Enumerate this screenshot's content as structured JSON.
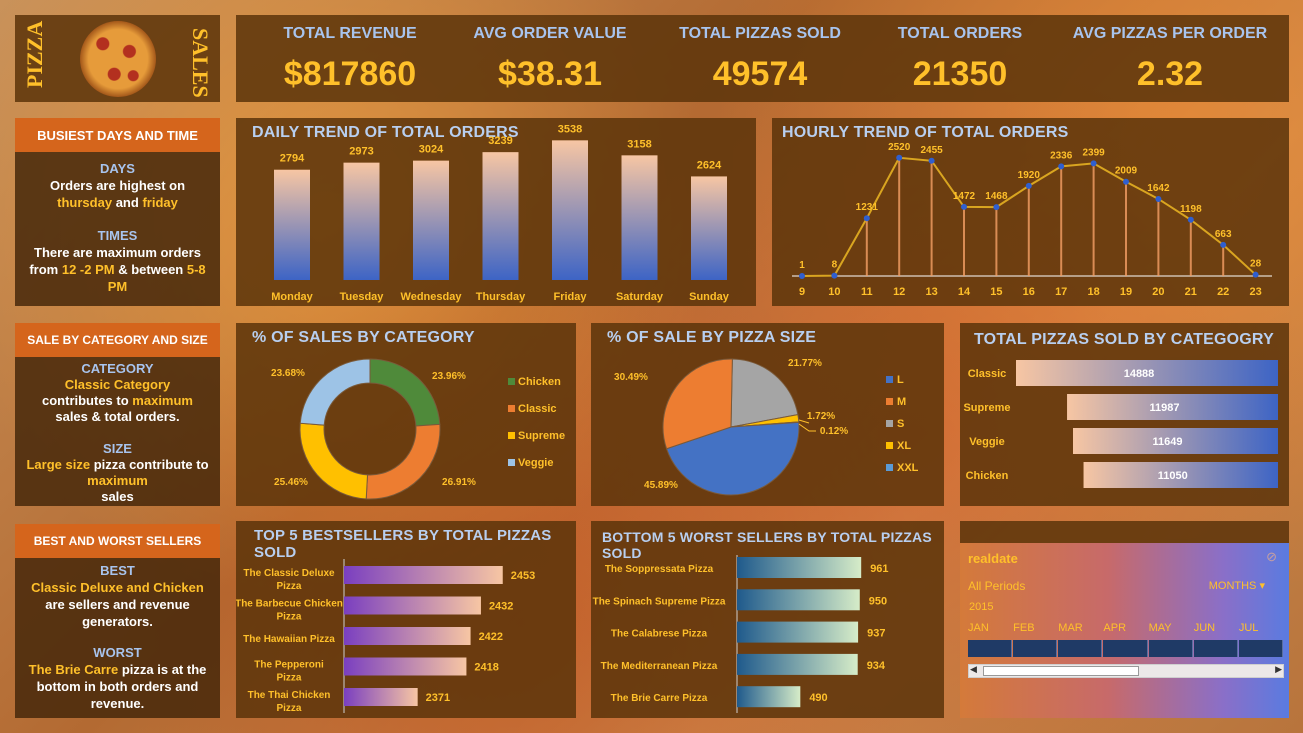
{
  "logo": {
    "left_text": "PIZZA",
    "right_text": "SALES"
  },
  "kpis": [
    {
      "label": "TOTAL REVENUE",
      "value": "$817860"
    },
    {
      "label": "AVG ORDER VALUE",
      "value": "$38.31"
    },
    {
      "label": "TOTAL PIZZAS SOLD",
      "value": "49574"
    },
    {
      "label": "TOTAL ORDERS",
      "value": "21350"
    },
    {
      "label": "AVG PIZZAS PER ORDER",
      "value": "2.32"
    }
  ],
  "busiest": {
    "heading": "BUSIEST DAYS AND TIME",
    "days_title": "DAYS",
    "days_text_1": "Orders are highest on",
    "days_hl_1": "thursday",
    "days_and": "and",
    "days_hl_2": "friday",
    "times_title": "TIMES",
    "times_text_1": "There are maximum orders from",
    "times_hl_1": "12 -2 PM",
    "times_amp": "&",
    "times_between": "between",
    "times_hl_2": "5-8 PM"
  },
  "catsize": {
    "heading": "SALE BY CATEGORY AND SIZE",
    "cat_title": "CATEGORY",
    "cat_hl": "Classic Category",
    "cat_text_1": "contributes to",
    "cat_hl_2": "maximum",
    "cat_text_2": "sales & total orders.",
    "size_title": "SIZE",
    "size_hl": "Large size",
    "size_text_1": "pizza contribute to",
    "size_hl_2": "maximum",
    "size_text_2": "sales"
  },
  "bestworst": {
    "heading": "BEST AND WORST SELLERS",
    "best_title": "BEST",
    "best_hl": "Classic Deluxe and Chicken",
    "best_text": "are sellers and revenue generators.",
    "worst_title": "WORST",
    "worst_hl": "The Brie Carre",
    "worst_text": "pizza is at the bottom in both orders and revenue."
  },
  "chart_data": [
    {
      "type": "bar",
      "title": "DAILY TREND OF TOTAL ORDERS",
      "categories": [
        "Monday",
        "Tuesday",
        "Wednesday",
        "Thursday",
        "Friday",
        "Saturday",
        "Sunday"
      ],
      "values": [
        2794,
        2973,
        3024,
        3239,
        3538,
        3158,
        2624
      ]
    },
    {
      "type": "line",
      "title": "HOURLY TREND OF TOTAL ORDERS",
      "x": [
        "9",
        "10",
        "11",
        "12",
        "13",
        "14",
        "15",
        "16",
        "17",
        "18",
        "19",
        "20",
        "21",
        "22",
        "23"
      ],
      "values": [
        1,
        8,
        1231,
        2520,
        2455,
        1472,
        1468,
        1920,
        2336,
        2399,
        2009,
        1642,
        1198,
        663,
        28
      ]
    },
    {
      "type": "pie",
      "title": "% OF SALES BY CATEGORY",
      "labels": [
        "Chicken",
        "Classic",
        "Supreme",
        "Veggie"
      ],
      "values": [
        23.96,
        26.91,
        25.46,
        23.68
      ],
      "value_labels": [
        "23.96%",
        "26.91%",
        "25.46%",
        "23.68%"
      ],
      "colors": [
        "#4f8a3a",
        "#ed7d31",
        "#ffc000",
        "#9dc3e6"
      ]
    },
    {
      "type": "pie",
      "title": "% OF SALE BY PIZZA SIZE",
      "labels": [
        "L",
        "M",
        "S",
        "XL",
        "XXL"
      ],
      "values": [
        45.89,
        30.49,
        21.77,
        1.72,
        0.12
      ],
      "value_labels": [
        "45.89%",
        "30.49%",
        "21.77%",
        "1.72%",
        "0.12%"
      ],
      "colors": [
        "#4472c4",
        "#ed7d31",
        "#a5a5a5",
        "#ffc000",
        "#5b9bd5"
      ]
    },
    {
      "type": "bar",
      "title": "TOTAL PIZZAS SOLD BY CATEGOGRY",
      "categories": [
        "Classic",
        "Supreme",
        "Veggie",
        "Chicken"
      ],
      "values": [
        14888,
        11987,
        11649,
        11050
      ]
    },
    {
      "type": "bar",
      "title": "TOP 5 BESTSELLERS BY TOTAL PIZZAS SOLD",
      "categories": [
        "The Classic Deluxe Pizza",
        "The Barbecue Chicken Pizza",
        "The Hawaiian Pizza",
        "The Pepperoni Pizza",
        "The Thai Chicken Pizza"
      ],
      "values": [
        2453,
        2432,
        2422,
        2418,
        2371
      ]
    },
    {
      "type": "bar",
      "title": "BOTTOM 5 WORST SELLERS BY TOTAL PIZZAS SOLD",
      "categories": [
        "The Soppressata Pizza",
        "The Spinach Supreme Pizza",
        "The Calabrese Pizza",
        "The Mediterranean Pizza",
        "The Brie Carre Pizza"
      ],
      "values": [
        961,
        950,
        937,
        934,
        490
      ]
    }
  ],
  "timeline": {
    "field": "realdate",
    "periods": "All Periods",
    "unit": "MONTHS",
    "year": "2015",
    "months": [
      "JAN",
      "FEB",
      "MAR",
      "APR",
      "MAY",
      "JUN",
      "JUL"
    ]
  },
  "colors": {
    "accent": "#ffc02a",
    "title": "#b8cff0",
    "header": "#d5651c"
  }
}
